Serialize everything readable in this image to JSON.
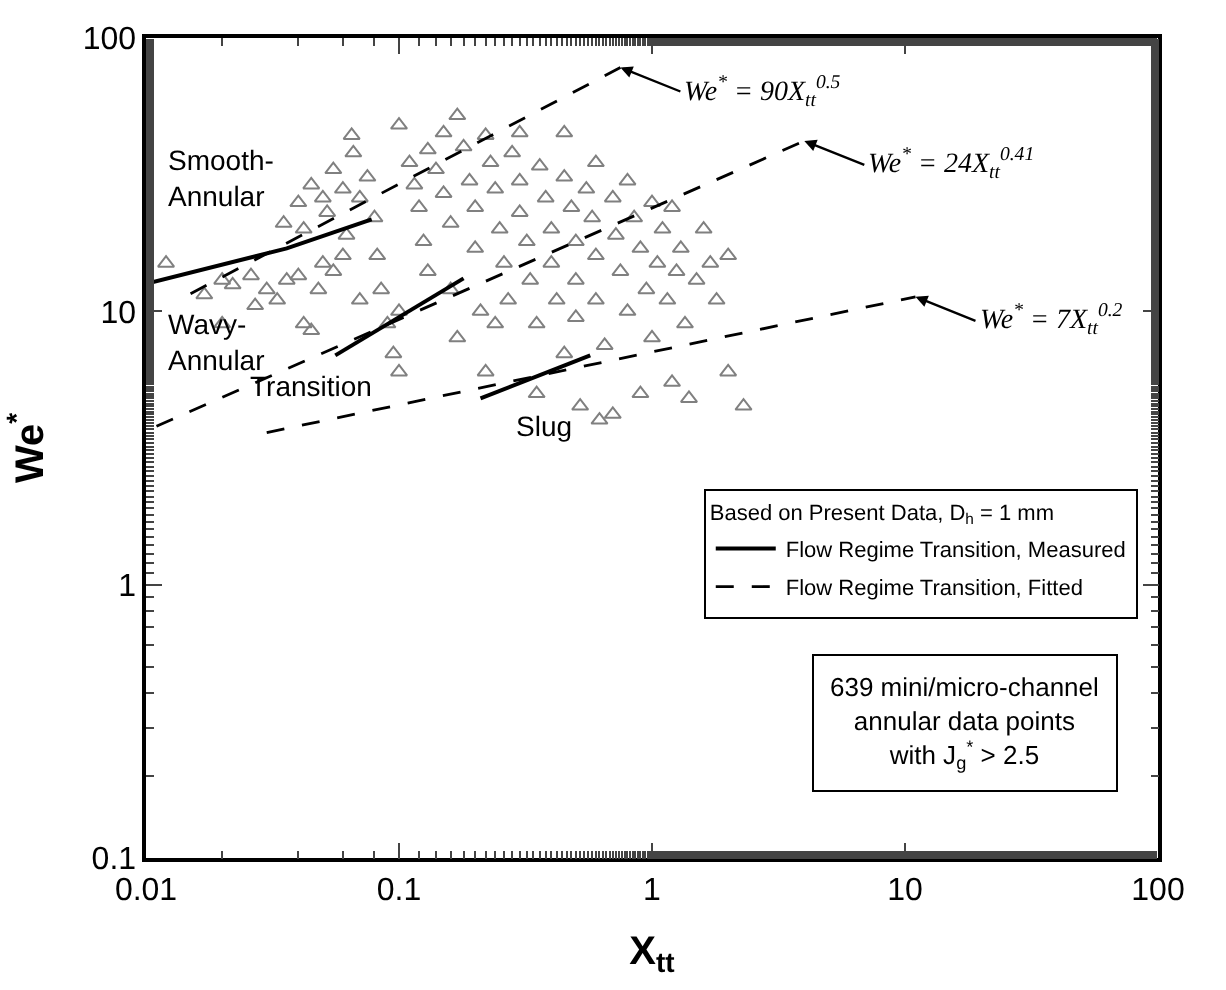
{
  "chart_data": {
    "type": "scatter",
    "xlabel": "X$_{tt}$",
    "ylabel": "We$^{*}$",
    "legend_title": "Based on Present Data, D$_{h}$ = 1 mm",
    "log": "xy",
    "legend": "right",
    "marker": "triangle",
    "xlim": [
      0.01,
      100
    ],
    "xticks": [
      0.01,
      0.1,
      1,
      10,
      100
    ],
    "ylim": [
      0.1,
      100
    ],
    "yticks": [
      0.1,
      1,
      10,
      100
    ],
    "series": [
      {
        "color": "#808080",
        "x": [
          0.012,
          0.017,
          0.02,
          0.022,
          0.026,
          0.03,
          0.033,
          0.036,
          0.04,
          0.042,
          0.045,
          0.048,
          0.05,
          0.055,
          0.035,
          0.04,
          0.042,
          0.045,
          0.05,
          0.052,
          0.055,
          0.06,
          0.062,
          0.065,
          0.066,
          0.07,
          0.075,
          0.08,
          0.082,
          0.085,
          0.09,
          0.095,
          0.1,
          0.1,
          0.11,
          0.115,
          0.12,
          0.125,
          0.13,
          0.13,
          0.14,
          0.15,
          0.15,
          0.16,
          0.16,
          0.17,
          0.17,
          0.18,
          0.19,
          0.2,
          0.2,
          0.21,
          0.22,
          0.22,
          0.23,
          0.24,
          0.25,
          0.26,
          0.27,
          0.28,
          0.3,
          0.3,
          0.32,
          0.33,
          0.35,
          0.35,
          0.36,
          0.38,
          0.4,
          0.4,
          0.42,
          0.45,
          0.45,
          0.48,
          0.5,
          0.5,
          0.52,
          0.55,
          0.58,
          0.6,
          0.6,
          0.62,
          0.65,
          0.7,
          0.72,
          0.75,
          0.8,
          0.85,
          0.9,
          0.95,
          1.0,
          1.0,
          1.05,
          1.1,
          1.15,
          1.2,
          1.25,
          1.3,
          1.35,
          1.4,
          1.5,
          1.6,
          1.7,
          1.8,
          2.0,
          2.0,
          2.3,
          1.2,
          0.9,
          0.7,
          0.45,
          0.6,
          0.8,
          0.3,
          0.02,
          0.027,
          0.1,
          0.06,
          0.07,
          0.24,
          0.5
        ],
        "values": [
          15,
          11.5,
          13,
          12.5,
          13.5,
          12,
          11,
          13,
          13.5,
          9,
          8.5,
          12,
          15,
          14,
          21,
          25,
          20,
          29,
          26,
          23,
          33,
          28,
          19,
          44,
          38,
          26,
          31,
          22,
          16,
          12,
          9,
          7,
          6,
          48,
          35,
          29,
          24,
          18,
          14,
          39,
          33,
          45,
          27,
          21,
          12,
          8,
          52,
          40,
          30,
          24,
          17,
          10,
          6,
          44,
          35,
          28,
          20,
          15,
          11,
          38,
          30,
          23,
          18,
          13,
          9,
          5,
          34,
          26,
          20,
          15,
          11,
          31,
          7,
          24,
          18,
          13,
          4.5,
          28,
          22,
          16,
          11,
          4,
          7.5,
          26,
          19,
          14,
          10,
          22,
          17,
          12,
          25,
          8,
          15,
          20,
          11,
          24,
          14,
          17,
          9,
          4.8,
          13,
          20,
          15,
          11,
          16,
          6,
          4.5,
          5.5,
          5,
          4.2,
          45,
          35,
          30,
          45,
          9,
          10.5,
          10,
          16,
          11,
          9,
          9.5
        ]
      },
      {
        "type": "line",
        "name": "Flow Regime Transition, Measured",
        "color": "#000000",
        "line_style": "solid",
        "marker": "none",
        "x": [
          0.01,
          0.036,
          0.078
        ],
        "values": [
          12.6,
          17,
          21.7
        ]
      },
      {
        "type": "line",
        "color": "#000000",
        "line_style": "solid",
        "marker": "none",
        "x": [
          0.056,
          0.18
        ],
        "values": [
          6.9,
          13.2
        ]
      },
      {
        "type": "line",
        "color": "#000000",
        "line_style": "solid",
        "marker": "none",
        "x": [
          0.21,
          0.57
        ],
        "values": [
          4.8,
          6.9
        ]
      },
      {
        "type": "line",
        "name": "Flow Regime Transition, Fitted",
        "color": "#000000",
        "line_style": "dashed",
        "marker": "none",
        "x": [
          0.015,
          0.75
        ],
        "values": [
          11.6,
          78
        ]
      },
      {
        "type": "line",
        "color": "#000000",
        "line_style": "dashed",
        "marker": "none",
        "x": [
          0.011,
          4
        ],
        "values": [
          3.8,
          42
        ]
      },
      {
        "type": "line",
        "color": "#000000",
        "line_style": "dashed",
        "marker": "none",
        "x": [
          0.03,
          11
        ],
        "values": [
          3.6,
          11.3
        ]
      }
    ],
    "annotations": [
      "Smooth-\nAnnular",
      "Wavy-\nAnnular",
      "Transition",
      "Slug",
      {
        "text": "We$^{*}$ = 90X$_{tt}$$^{0.5}$",
        "x": 0.75,
        "y": 78
      },
      {
        "text": "We$^{*}$ = 24X$_{tt}$$^{0.41}$",
        "x": 4,
        "y": 42
      },
      {
        "text": "We$^{*}$ = 7X$_{tt}$$^{0.2}$",
        "x": 11,
        "y": 11.3
      },
      "639 mini/micro-channel\nannular data points\nwith J$_{g}$$^{*}$ > 2.5"
    ]
  }
}
